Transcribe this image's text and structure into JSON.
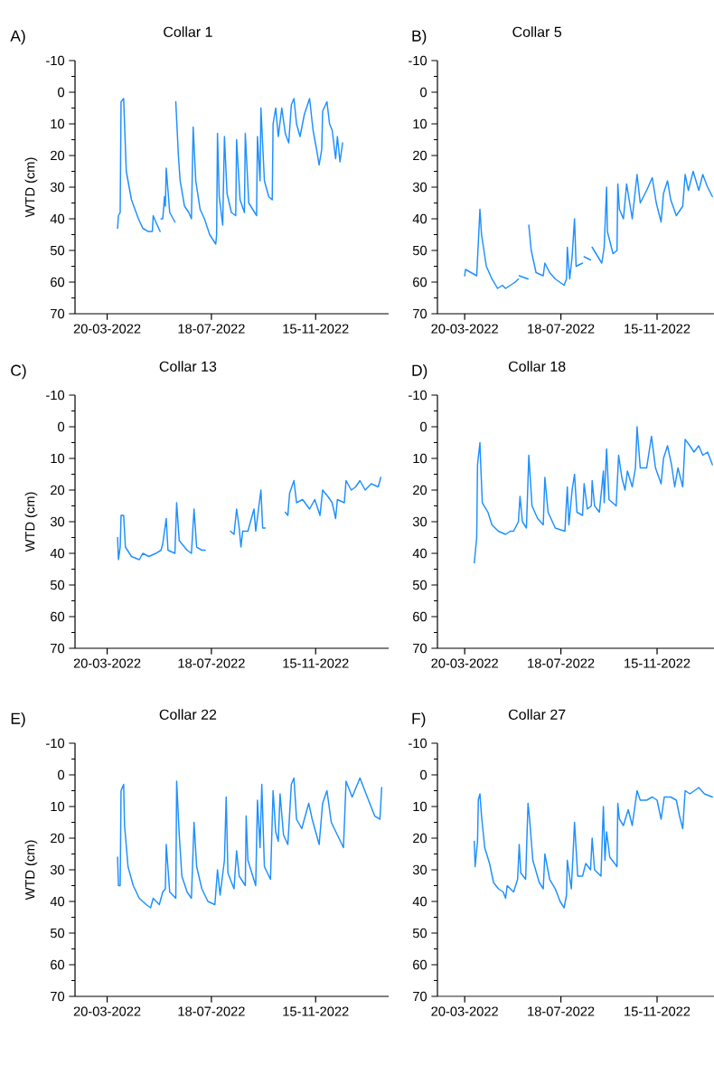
{
  "chart_data": [
    {
      "type": "line",
      "title": "Collar 1",
      "annotations": [
        "A)"
      ],
      "ylabel": "WTD (cm)",
      "series": [
        {
          "color": "#1e90ff",
          "x": [
            "2022-04-01",
            "2022-04-02",
            "2022-04-04",
            "2022-04-05",
            "2022-04-08",
            "2022-04-09",
            "2022-04-11",
            "2022-04-17",
            "2022-04-25",
            "2022-04-30",
            "2022-05-06",
            "2022-05-11",
            "2022-05-12",
            "2022-05-15",
            "2022-05-20"
          ],
          "values": [
            43,
            39,
            38,
            3,
            2,
            10,
            25,
            34,
            40,
            43,
            44,
            44,
            39,
            41,
            44
          ]
        },
        {
          "color": "#1e90ff",
          "x": [
            "2022-05-21",
            "2022-05-23",
            "2022-05-25",
            "2022-05-26",
            "2022-05-27",
            "2022-05-31",
            "2022-06-06"
          ],
          "values": [
            40,
            40,
            33,
            36,
            24,
            38,
            41
          ]
        },
        {
          "color": "#1e90ff",
          "x": [
            "2022-06-07",
            "2022-06-10",
            "2022-06-12",
            "2022-06-17",
            "2022-06-22",
            "2022-06-25",
            "2022-06-27",
            "2022-06-30",
            "2022-07-05",
            "2022-07-10",
            "2022-07-16",
            "2022-07-23",
            "2022-07-24",
            "2022-07-25",
            "2022-07-27",
            "2022-07-31",
            "2022-08-02",
            "2022-08-05",
            "2022-08-10",
            "2022-08-15",
            "2022-08-16",
            "2022-08-20",
            "2022-08-25",
            "2022-08-26",
            "2022-08-30",
            "2022-09-08",
            "2022-09-09",
            "2022-09-12",
            "2022-09-13",
            "2022-09-17",
            "2022-09-22",
            "2022-09-26",
            "2022-09-27",
            "2022-09-30",
            "2022-10-03",
            "2022-10-07",
            "2022-10-11",
            "2022-10-15",
            "2022-10-18",
            "2022-10-21",
            "2022-10-24",
            "2022-10-28",
            "2022-11-02",
            "2022-11-08",
            "2022-11-12",
            "2022-11-16",
            "2022-11-19",
            "2022-11-22",
            "2022-11-23",
            "2022-11-28",
            "2022-12-01",
            "2022-12-04",
            "2022-12-08",
            "2022-12-10",
            "2022-12-13",
            "2022-12-16"
          ],
          "values": [
            3,
            20,
            28,
            36,
            38,
            40,
            11,
            28,
            37,
            40,
            45,
            48,
            45,
            13,
            33,
            42,
            14,
            32,
            38,
            39,
            15,
            34,
            38,
            13,
            35,
            39,
            14,
            28,
            5,
            28,
            33,
            34,
            10,
            5,
            14,
            5,
            13,
            16,
            4,
            2,
            10,
            14,
            7,
            2,
            12,
            18,
            23,
            18,
            6,
            3,
            10,
            12,
            21,
            14,
            22,
            16
          ]
        }
      ],
      "xlim": [
        "2022-02-11",
        "2023-02-07"
      ],
      "ylim": [
        70,
        -10
      ],
      "yticks": [
        -10,
        0,
        10,
        20,
        30,
        40,
        50,
        60,
        70
      ],
      "xticks": [
        {
          "value": "2022-03-20",
          "label": "20-03-2022"
        },
        {
          "value": "2022-07-18",
          "label": "18-07-2022"
        },
        {
          "value": "2022-11-15",
          "label": "15-11-2022"
        }
      ]
    },
    {
      "type": "line",
      "title": "Collar 5",
      "annotations": [
        "B)"
      ],
      "series": [
        {
          "color": "#1e90ff",
          "x": [
            "2022-03-20",
            "2022-03-21",
            "2022-03-28",
            "2022-04-04",
            "2022-04-08",
            "2022-04-10",
            "2022-04-16",
            "2022-04-23",
            "2022-04-30",
            "2022-05-06",
            "2022-05-10",
            "2022-05-16",
            "2022-05-22",
            "2022-05-26"
          ],
          "values": [
            58,
            56,
            57,
            58,
            37,
            45,
            55,
            59,
            62,
            61,
            62,
            61,
            60,
            59
          ]
        },
        {
          "color": "#1e90ff",
          "x": [
            "2022-05-27",
            "2022-06-07"
          ],
          "values": [
            58,
            59
          ]
        },
        {
          "color": "#1e90ff",
          "x": [
            "2022-06-08",
            "2022-06-11",
            "2022-06-17",
            "2022-06-26",
            "2022-06-28",
            "2022-07-04",
            "2022-07-11",
            "2022-07-22",
            "2022-07-25",
            "2022-07-26",
            "2022-07-29",
            "2022-08-01",
            "2022-08-04",
            "2022-08-06",
            "2022-08-14"
          ],
          "values": [
            42,
            50,
            57,
            58,
            54,
            57,
            59,
            61,
            59,
            49,
            59,
            52,
            40,
            55,
            54
          ]
        },
        {
          "color": "#1e90ff",
          "x": [
            "2022-08-16",
            "2022-08-24"
          ],
          "values": [
            52,
            53
          ]
        },
        {
          "color": "#1e90ff",
          "x": [
            "2022-08-26",
            "2022-09-07",
            "2022-09-10",
            "2022-09-13",
            "2022-09-14",
            "2022-09-21",
            "2022-09-26",
            "2022-09-27",
            "2022-09-29",
            "2022-10-04",
            "2022-10-08",
            "2022-10-15",
            "2022-10-21",
            "2022-10-25",
            "2022-11-02",
            "2022-11-09",
            "2022-11-14",
            "2022-11-20",
            "2022-11-23",
            "2022-11-28",
            "2022-12-02",
            "2022-12-09",
            "2022-12-17",
            "2022-12-20",
            "2022-12-24",
            "2022-12-30",
            "2023-01-06",
            "2023-01-11",
            "2023-01-17",
            "2023-01-23"
          ],
          "values": [
            49,
            54,
            49,
            30,
            44,
            51,
            50,
            29,
            37,
            40,
            29,
            40,
            26,
            35,
            31,
            27,
            35,
            41,
            32,
            28,
            34,
            39,
            36,
            26,
            31,
            25,
            31,
            26,
            30,
            33
          ]
        }
      ],
      "xlim": [
        "2022-02-14",
        "2023-01-25"
      ],
      "ylim": [
        70,
        -10
      ],
      "yticks": [
        -10,
        0,
        10,
        20,
        30,
        40,
        50,
        60,
        70
      ],
      "xticks": [
        {
          "value": "2022-03-20",
          "label": "20-03-2022"
        },
        {
          "value": "2022-07-18",
          "label": "18-07-2022"
        },
        {
          "value": "2022-11-15",
          "label": "15-11-2022"
        }
      ]
    },
    {
      "type": "line",
      "title": "Collar 13",
      "annotations": [
        "C)"
      ],
      "ylabel": "WTD (cm)",
      "series": [
        {
          "color": "#1e90ff",
          "x": [
            "2022-04-01",
            "2022-04-02",
            "2022-04-04",
            "2022-04-05",
            "2022-04-08",
            "2022-04-10",
            "2022-04-17",
            "2022-04-26",
            "2022-04-30",
            "2022-05-07",
            "2022-05-15",
            "2022-05-21",
            "2022-05-23",
            "2022-05-27",
            "2022-05-29",
            "2022-06-06",
            "2022-06-08",
            "2022-06-11",
            "2022-06-20",
            "2022-06-25",
            "2022-06-28",
            "2022-07-01",
            "2022-07-07",
            "2022-07-11"
          ],
          "values": [
            35,
            42,
            38,
            28,
            28,
            38,
            41,
            42,
            40,
            41,
            40,
            39,
            37,
            29,
            39,
            40,
            24,
            36,
            39,
            40,
            26,
            38,
            39,
            39
          ]
        },
        {
          "color": "#1e90ff",
          "x": [
            "2022-08-09",
            "2022-08-13",
            "2022-08-16",
            "2022-08-19",
            "2022-08-21",
            "2022-08-23",
            "2022-08-29",
            "2022-09-05",
            "2022-09-07",
            "2022-09-13",
            "2022-09-15",
            "2022-09-18"
          ],
          "values": [
            33,
            34,
            26,
            32,
            38,
            33,
            33,
            26,
            33,
            20,
            32,
            32
          ]
        },
        {
          "color": "#1e90ff",
          "x": [
            "2022-10-11",
            "2022-10-14",
            "2022-10-16",
            "2022-10-21",
            "2022-10-24",
            "2022-10-31",
            "2022-11-08",
            "2022-11-14",
            "2022-11-20",
            "2022-11-23",
            "2022-11-29",
            "2022-12-04",
            "2022-12-08",
            "2022-12-10",
            "2022-12-18",
            "2022-12-20",
            "2022-12-26",
            "2022-12-31",
            "2023-01-05",
            "2023-01-11",
            "2023-01-18",
            "2023-01-26",
            "2023-01-29"
          ],
          "values": [
            27,
            28,
            21,
            17,
            24,
            23,
            26,
            23,
            28,
            20,
            22,
            24,
            29,
            23,
            24,
            17,
            20,
            19,
            17,
            20,
            18,
            19,
            16
          ]
        }
      ],
      "xlim": [
        "2022-02-11",
        "2023-02-07"
      ],
      "ylim": [
        70,
        -10
      ],
      "yticks": [
        -10,
        0,
        10,
        20,
        30,
        40,
        50,
        60,
        70
      ],
      "xticks": [
        {
          "value": "2022-03-20",
          "label": "20-03-2022"
        },
        {
          "value": "2022-07-18",
          "label": "18-07-2022"
        },
        {
          "value": "2022-11-15",
          "label": "15-11-2022"
        }
      ]
    },
    {
      "type": "line",
      "title": "Collar 18",
      "annotations": [
        "D)"
      ],
      "series": [
        {
          "color": "#1e90ff",
          "x": [
            "2022-04-01",
            "2022-04-04",
            "2022-04-05",
            "2022-04-08",
            "2022-04-09",
            "2022-04-11",
            "2022-04-18",
            "2022-04-23",
            "2022-05-01",
            "2022-05-10",
            "2022-05-16",
            "2022-05-20",
            "2022-05-26",
            "2022-05-28",
            "2022-05-31",
            "2022-06-05",
            "2022-06-08",
            "2022-06-12",
            "2022-06-19",
            "2022-06-26",
            "2022-06-28",
            "2022-07-02",
            "2022-07-11",
            "2022-07-23",
            "2022-07-26",
            "2022-07-28",
            "2022-08-01",
            "2022-08-04",
            "2022-08-07",
            "2022-08-14",
            "2022-08-16",
            "2022-08-20",
            "2022-08-25",
            "2022-08-26",
            "2022-08-29",
            "2022-09-04",
            "2022-09-09",
            "2022-09-10",
            "2022-09-13",
            "2022-09-16",
            "2022-09-25",
            "2022-09-28",
            "2022-10-02",
            "2022-10-06",
            "2022-10-09",
            "2022-10-15",
            "2022-10-19",
            "2022-10-21",
            "2022-10-25",
            "2022-11-02",
            "2022-11-08",
            "2022-11-13",
            "2022-11-20",
            "2022-11-23",
            "2022-11-28",
            "2022-12-03",
            "2022-12-07",
            "2022-12-11",
            "2022-12-17",
            "2022-12-20",
            "2022-12-26",
            "2022-12-31",
            "2023-01-06",
            "2023-01-11",
            "2023-01-17",
            "2023-01-23"
          ],
          "values": [
            43,
            35,
            12,
            5,
            12,
            24,
            27,
            31,
            33,
            34,
            33,
            33,
            30,
            22,
            30,
            32,
            9,
            25,
            29,
            31,
            16,
            27,
            32,
            33,
            19,
            31,
            20,
            15,
            27,
            28,
            18,
            26,
            25,
            17,
            25,
            27,
            14,
            24,
            7,
            23,
            25,
            9,
            16,
            20,
            14,
            19,
            13,
            0,
            13,
            13,
            3,
            13,
            18,
            10,
            6,
            12,
            19,
            13,
            19,
            4,
            6,
            8,
            6,
            9,
            8,
            12
          ]
        }
      ],
      "xlim": [
        "2022-02-14",
        "2023-01-25"
      ],
      "ylim": [
        70,
        -10
      ],
      "yticks": [
        -10,
        0,
        10,
        20,
        30,
        40,
        50,
        60,
        70
      ],
      "xticks": [
        {
          "value": "2022-03-20",
          "label": "20-03-2022"
        },
        {
          "value": "2022-07-18",
          "label": "18-07-2022"
        },
        {
          "value": "2022-11-15",
          "label": "15-11-2022"
        }
      ]
    },
    {
      "type": "line",
      "title": "Collar 22",
      "annotations": [
        "E)"
      ],
      "ylabel": "WTD (cm)",
      "series": [
        {
          "color": "#1e90ff",
          "x": [
            "2022-04-01",
            "2022-04-02",
            "2022-04-04",
            "2022-04-05",
            "2022-04-08",
            "2022-04-09",
            "2022-04-13",
            "2022-04-19",
            "2022-04-26",
            "2022-05-04",
            "2022-05-09",
            "2022-05-12",
            "2022-05-19",
            "2022-05-23",
            "2022-05-26",
            "2022-05-27",
            "2022-05-31",
            "2022-06-07",
            "2022-06-08",
            "2022-06-11",
            "2022-06-14",
            "2022-06-20",
            "2022-06-25",
            "2022-06-28",
            "2022-07-01",
            "2022-07-07",
            "2022-07-14",
            "2022-07-22",
            "2022-07-25",
            "2022-07-28",
            "2022-08-02",
            "2022-08-04",
            "2022-08-06",
            "2022-08-13",
            "2022-08-16",
            "2022-08-19",
            "2022-08-26",
            "2022-08-27",
            "2022-08-29",
            "2022-09-07",
            "2022-09-09",
            "2022-09-12",
            "2022-09-14",
            "2022-09-17",
            "2022-09-24",
            "2022-09-27",
            "2022-09-30",
            "2022-10-03",
            "2022-10-05",
            "2022-10-09",
            "2022-10-14",
            "2022-10-18",
            "2022-10-21",
            "2022-10-24",
            "2022-10-30",
            "2022-11-07",
            "2022-11-11",
            "2022-11-19",
            "2022-11-23",
            "2022-11-28",
            "2022-12-03",
            "2022-12-10",
            "2022-12-17",
            "2022-12-20",
            "2022-12-27",
            "2023-01-05",
            "2023-01-12",
            "2023-01-22",
            "2023-01-28",
            "2023-01-30"
          ],
          "values": [
            26,
            35,
            35,
            5,
            3,
            16,
            29,
            35,
            39,
            41,
            42,
            39,
            41,
            37,
            36,
            22,
            37,
            39,
            2,
            19,
            32,
            37,
            39,
            15,
            29,
            36,
            40,
            41,
            30,
            38,
            27,
            7,
            31,
            36,
            24,
            32,
            35,
            13,
            27,
            35,
            8,
            23,
            3,
            29,
            33,
            5,
            18,
            21,
            6,
            19,
            22,
            3,
            1,
            14,
            17,
            9,
            14,
            22,
            9,
            5,
            15,
            19,
            23,
            2,
            7,
            1,
            6,
            13,
            14,
            4
          ]
        }
      ],
      "xlim": [
        "2022-02-11",
        "2023-02-07"
      ],
      "ylim": [
        70,
        -10
      ],
      "yticks": [
        -10,
        0,
        10,
        20,
        30,
        40,
        50,
        60,
        70
      ],
      "xticks": [
        {
          "value": "2022-03-20",
          "label": "20-03-2022"
        },
        {
          "value": "2022-07-18",
          "label": "18-07-2022"
        },
        {
          "value": "2022-11-15",
          "label": "15-11-2022"
        }
      ]
    },
    {
      "type": "line",
      "title": "Collar 27",
      "annotations": [
        "F)"
      ],
      "series": [
        {
          "color": "#1e90ff",
          "x": [
            "2022-04-01",
            "2022-04-02",
            "2022-04-05",
            "2022-04-06",
            "2022-04-08",
            "2022-04-10",
            "2022-04-14",
            "2022-04-20",
            "2022-04-25",
            "2022-05-01",
            "2022-05-07",
            "2022-05-10",
            "2022-05-12",
            "2022-05-20",
            "2022-05-25",
            "2022-05-27",
            "2022-05-29",
            "2022-06-04",
            "2022-06-07",
            "2022-06-09",
            "2022-06-13",
            "2022-06-21",
            "2022-06-26",
            "2022-06-28",
            "2022-07-04",
            "2022-07-11",
            "2022-07-17",
            "2022-07-22",
            "2022-07-25",
            "2022-07-26",
            "2022-07-31",
            "2022-08-02",
            "2022-08-04",
            "2022-08-08",
            "2022-08-14",
            "2022-08-18",
            "2022-08-24",
            "2022-08-26",
            "2022-08-29",
            "2022-09-06",
            "2022-09-09",
            "2022-09-11",
            "2022-09-13",
            "2022-09-17",
            "2022-09-26",
            "2022-09-27",
            "2022-09-29",
            "2022-10-04",
            "2022-10-10",
            "2022-10-15",
            "2022-10-21",
            "2022-10-25",
            "2022-11-02",
            "2022-11-09",
            "2022-11-15",
            "2022-11-20",
            "2022-11-24",
            "2022-12-02",
            "2022-12-09",
            "2022-12-13",
            "2022-12-17",
            "2022-12-20",
            "2022-12-26",
            "2023-01-06",
            "2023-01-13",
            "2023-01-23"
          ],
          "values": [
            21,
            29,
            21,
            8,
            6,
            13,
            23,
            28,
            34,
            36,
            37,
            39,
            35,
            37,
            33,
            22,
            31,
            33,
            9,
            14,
            27,
            34,
            36,
            25,
            33,
            36,
            40,
            42,
            38,
            27,
            36,
            26,
            15,
            32,
            32,
            28,
            30,
            20,
            30,
            32,
            10,
            27,
            18,
            26,
            29,
            9,
            14,
            16,
            11,
            16,
            5,
            8,
            8,
            7,
            8,
            14,
            7,
            7,
            8,
            13,
            17,
            5,
            6,
            4,
            6,
            7
          ]
        }
      ],
      "xlim": [
        "2022-02-14",
        "2023-01-25"
      ],
      "ylim": [
        70,
        -10
      ],
      "yticks": [
        -10,
        0,
        10,
        20,
        30,
        40,
        50,
        60,
        70
      ],
      "xticks": [
        {
          "value": "2022-03-20",
          "label": "20-03-2022"
        },
        {
          "value": "2022-07-18",
          "label": "18-07-2022"
        },
        {
          "value": "2022-11-15",
          "label": "15-11-2022"
        }
      ]
    }
  ]
}
